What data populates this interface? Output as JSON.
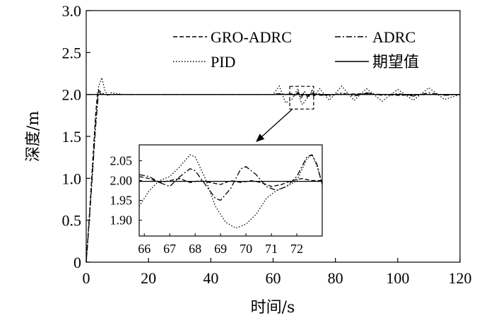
{
  "chart_data": {
    "type": "line",
    "title": "",
    "xlabel": "时间/s",
    "ylabel": "深度/m",
    "xlim": [
      0,
      120
    ],
    "ylim": [
      0,
      3.0
    ],
    "x_ticks": [
      "0",
      "20",
      "40",
      "60",
      "80",
      "100",
      "120"
    ],
    "y_ticks": [
      "0",
      "0.5",
      "1.0",
      "1.5",
      "2.0",
      "2.5",
      "3.0"
    ],
    "grid": false,
    "legend_position": "top-right",
    "series": [
      {
        "name": "GRO-ADRC",
        "style": "dashed",
        "x": [
          0,
          1,
          2,
          3,
          3.6,
          4,
          5,
          6,
          10,
          20,
          40,
          60,
          62,
          64,
          66,
          67,
          68,
          69,
          70,
          71,
          72,
          73,
          75,
          80,
          90,
          100,
          110,
          120
        ],
        "y": [
          0,
          0.55,
          1.15,
          1.75,
          2.01,
          2.03,
          2.0,
          2.0,
          2.0,
          2.0,
          2.0,
          2.0,
          2.01,
          2.0,
          2.0,
          1.99,
          2.01,
          1.99,
          2.0,
          1.99,
          2.0,
          2.01,
          1.99,
          2.0,
          2.01,
          1.99,
          2.0,
          2.0
        ]
      },
      {
        "name": "ADRC",
        "style": "dashdot",
        "x": [
          0,
          1,
          2,
          3,
          4,
          5,
          6,
          8,
          10,
          20,
          40,
          60,
          62,
          64,
          66,
          67,
          68,
          69,
          70,
          71,
          72,
          72.5,
          73,
          75,
          78,
          82,
          86,
          90,
          95,
          100,
          105,
          110,
          115,
          120
        ],
        "y": [
          0,
          0.5,
          1.05,
          1.6,
          2.05,
          2.02,
          2.0,
          2.0,
          2.0,
          2.0,
          2.0,
          2.0,
          2.01,
          2.0,
          2.01,
          1.98,
          2.03,
          1.95,
          2.04,
          1.97,
          2.0,
          2.035,
          1.99,
          2.01,
          1.98,
          2.02,
          1.98,
          2.02,
          1.99,
          2.01,
          1.98,
          2.02,
          1.99,
          2.0
        ]
      },
      {
        "name": "PID",
        "style": "dotted",
        "x": [
          0,
          1,
          2,
          3,
          4,
          5,
          6,
          7,
          8,
          10,
          12,
          20,
          27,
          60,
          62,
          64,
          66,
          67,
          68,
          69,
          69.5,
          70,
          71,
          72,
          72.5,
          73,
          75,
          78,
          82,
          86,
          90,
          95,
          100,
          105,
          110,
          115,
          120
        ],
        "y": [
          0,
          0.5,
          1.05,
          1.65,
          2.1,
          2.2,
          2.05,
          1.98,
          2.02,
          2.01,
          2.0,
          2.0,
          2.0,
          2.0,
          2.1,
          1.9,
          1.94,
          2.01,
          2.07,
          1.9,
          1.88,
          1.91,
          1.96,
          2.0,
          2.06,
          1.97,
          2.07,
          1.93,
          2.1,
          1.93,
          2.07,
          1.92,
          2.06,
          1.93,
          2.08,
          1.94,
          2.0
        ]
      },
      {
        "name": "期望值",
        "style": "solid",
        "x": [
          0,
          120
        ],
        "y": [
          2.0,
          2.0
        ]
      }
    ],
    "inset": {
      "xlim": [
        65.8,
        73
      ],
      "ylim": [
        1.86,
        2.09
      ],
      "x_ticks": [
        "66",
        "67",
        "68",
        "69",
        "70",
        "71",
        "72"
      ],
      "y_ticks": [
        "1.90",
        "1.95",
        "2.00",
        "2.05"
      ],
      "zoom_region_x": [
        66,
        73
      ],
      "zoom_region_y": [
        1.86,
        2.08
      ],
      "series": [
        {
          "name": "GRO-ADRC",
          "style": "dashed",
          "x": [
            65.8,
            66.2,
            66.6,
            67.0,
            67.4,
            67.8,
            68.2,
            68.6,
            69.0,
            69.4,
            69.8,
            70.2,
            70.6,
            71.0,
            71.4,
            71.8,
            72.2,
            72.6,
            73.0
          ],
          "y": [
            2.01,
            2.005,
            1.995,
            2.0,
            2.005,
            1.995,
            2.0,
            1.995,
            1.99,
            2.0,
            1.995,
            2.0,
            1.995,
            1.985,
            1.99,
            2.0,
            2.005,
            2.0,
            2.0
          ]
        },
        {
          "name": "ADRC",
          "style": "dashdot",
          "x": [
            65.8,
            66.2,
            66.6,
            67.0,
            67.4,
            67.8,
            68.0,
            68.4,
            68.8,
            69.0,
            69.4,
            69.8,
            70.0,
            70.4,
            70.8,
            71.2,
            71.6,
            72.0,
            72.4,
            72.6,
            72.8,
            73.0
          ],
          "y": [
            2.015,
            2.01,
            1.995,
            1.985,
            2.01,
            2.03,
            2.025,
            1.99,
            1.955,
            1.95,
            1.98,
            2.03,
            2.035,
            2.015,
            1.985,
            1.975,
            1.985,
            2.01,
            2.06,
            2.065,
            2.04,
            1.99
          ]
        },
        {
          "name": "PID",
          "style": "dotted",
          "x": [
            65.8,
            66.2,
            66.6,
            67.0,
            67.4,
            67.8,
            68.0,
            68.4,
            68.8,
            69.2,
            69.6,
            70.0,
            70.4,
            70.8,
            71.2,
            71.6,
            72.0,
            72.4,
            72.6,
            72.8,
            73.0
          ],
          "y": [
            1.935,
            1.975,
            2.0,
            2.01,
            2.035,
            2.065,
            2.06,
            2.005,
            1.935,
            1.895,
            1.88,
            1.89,
            1.915,
            1.955,
            1.975,
            1.985,
            2.0,
            2.055,
            2.065,
            2.035,
            1.99
          ]
        },
        {
          "name": "期望值",
          "style": "solid",
          "x": [
            65.8,
            73.0
          ],
          "y": [
            1.998,
            1.998
          ]
        }
      ]
    }
  }
}
